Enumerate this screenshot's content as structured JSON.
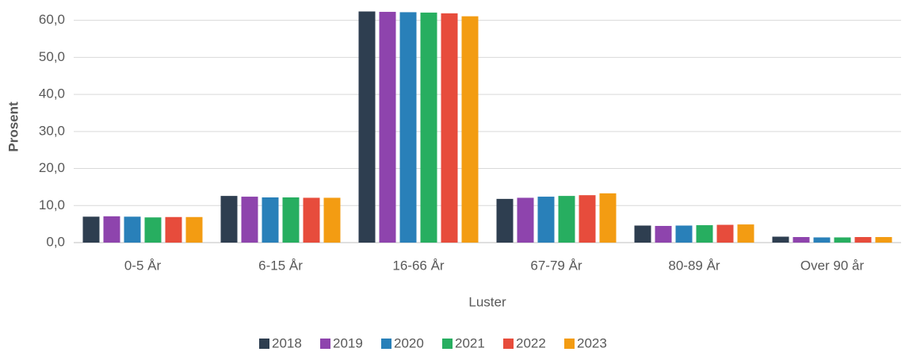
{
  "chart_data": {
    "type": "bar",
    "y_label": "Prosent",
    "x_label": "Luster",
    "categories": [
      "0-5 År",
      "6-15 År",
      "16-66 År",
      "67-79 År",
      "80-89 År",
      "Over 90 år"
    ],
    "series": [
      {
        "name": "2018",
        "color": "#2e3e50",
        "values": [
          7.0,
          12.6,
          62.4,
          11.8,
          4.6,
          1.6
        ]
      },
      {
        "name": "2019",
        "color": "#8e44ad",
        "values": [
          7.1,
          12.4,
          62.3,
          12.1,
          4.5,
          1.5
        ]
      },
      {
        "name": "2020",
        "color": "#2980b9",
        "values": [
          7.0,
          12.2,
          62.2,
          12.4,
          4.6,
          1.4
        ]
      },
      {
        "name": "2021",
        "color": "#27ae60",
        "values": [
          6.8,
          12.2,
          62.1,
          12.6,
          4.7,
          1.4
        ]
      },
      {
        "name": "2022",
        "color": "#e74c3c",
        "values": [
          6.9,
          12.1,
          61.9,
          12.8,
          4.8,
          1.5
        ]
      },
      {
        "name": "2023",
        "color": "#f39c12",
        "values": [
          6.9,
          12.1,
          61.1,
          13.3,
          4.9,
          1.5
        ]
      }
    ],
    "ylim": [
      0,
      62.5
    ],
    "yticks": [
      {
        "value": 0,
        "label": "0,0"
      },
      {
        "value": 10,
        "label": "10,0"
      },
      {
        "value": 20,
        "label": "20,0"
      },
      {
        "value": 30,
        "label": "30,0"
      },
      {
        "value": 40,
        "label": "40,0"
      },
      {
        "value": 50,
        "label": "50,0"
      },
      {
        "value": 60,
        "label": "60,0"
      }
    ],
    "grid": true,
    "legend": "bottom"
  }
}
